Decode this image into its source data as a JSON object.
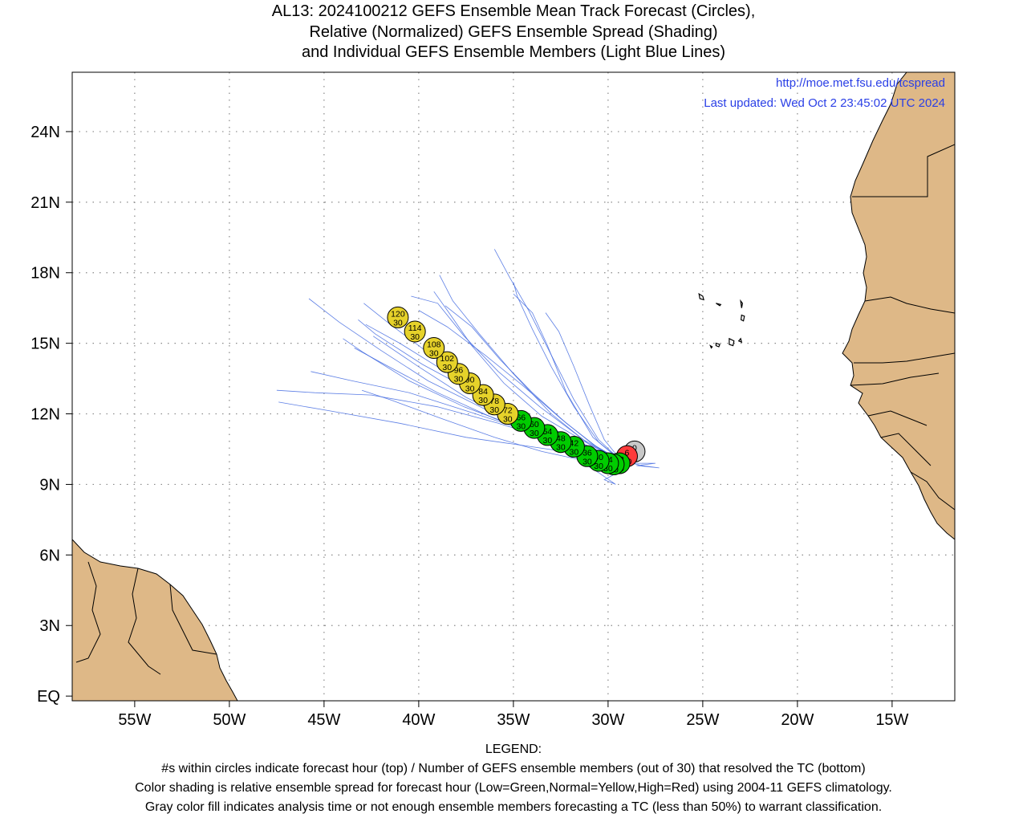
{
  "title": {
    "line1": "AL13: 2024100212 GEFS Ensemble Mean Track Forecast (Circles),",
    "line2": "Relative (Normalized) GEFS Ensemble Spread (Shading)",
    "line3": "and Individual GEFS Ensemble Members (Light Blue Lines)"
  },
  "source_url": "http://moe.met.fsu.edu/tcspread",
  "last_updated": "Last updated: Wed Oct 2 23:45:02 UTC 2024",
  "lat_labels": [
    "EQ",
    "3N",
    "6N",
    "9N",
    "12N",
    "15N",
    "18N",
    "21N",
    "24N"
  ],
  "lon_labels": [
    "55W",
    "50W",
    "45W",
    "40W",
    "35W",
    "30W",
    "25W",
    "20W",
    "15W"
  ],
  "colors": {
    "land": "#deb887",
    "member_line": "#4169e1",
    "low_spread": "#00cc00",
    "normal_spread": "#e6d22a",
    "high_spread": "#ff3b3b",
    "analysis_gray": "#c8c8c8",
    "link": "#2a3fe6"
  },
  "legend": {
    "heading": "LEGEND:",
    "line1": "#s within circles indicate forecast hour (top) / Number of GEFS ensemble members (out of 30) that resolved the TC (bottom)",
    "line2": "Color shading is relative ensemble spread for forecast hour (Low=Green,Normal=Yellow,High=Red) using 2004-11 GEFS climatology.",
    "line3": "Gray color fill indicates analysis time or not enough ensemble members forecasting a TC (less than 50%) to warrant classification."
  },
  "track": [
    {
      "hour": "0",
      "members": "0",
      "color": "gray",
      "lon": -28.6,
      "lat": 10.4
    },
    {
      "hour": "6",
      "members": "30",
      "color": "red",
      "lon": -29.0,
      "lat": 10.2
    },
    {
      "hour": "12",
      "members": "30",
      "color": "green",
      "lon": -29.4,
      "lat": 9.9
    },
    {
      "hour": "18",
      "members": "30",
      "color": "green",
      "lon": -29.7,
      "lat": 9.85
    },
    {
      "hour": "24",
      "members": "30",
      "color": "green",
      "lon": -30.0,
      "lat": 9.9
    },
    {
      "hour": "30",
      "members": "30",
      "color": "green",
      "lon": -30.5,
      "lat": 10.0
    },
    {
      "hour": "36",
      "members": "30",
      "color": "green",
      "lon": -31.1,
      "lat": 10.2
    },
    {
      "hour": "42",
      "members": "30",
      "color": "green",
      "lon": -31.8,
      "lat": 10.6
    },
    {
      "hour": "48",
      "members": "30",
      "color": "green",
      "lon": -32.5,
      "lat": 10.8
    },
    {
      "hour": "54",
      "members": "30",
      "color": "green",
      "lon": -33.2,
      "lat": 11.1
    },
    {
      "hour": "60",
      "members": "30",
      "color": "green",
      "lon": -33.9,
      "lat": 11.4
    },
    {
      "hour": "66",
      "members": "30",
      "color": "green",
      "lon": -34.6,
      "lat": 11.7
    },
    {
      "hour": "72",
      "members": "30",
      "color": "yellow",
      "lon": -35.3,
      "lat": 12.0
    },
    {
      "hour": "78",
      "members": "30",
      "color": "yellow",
      "lon": -36.0,
      "lat": 12.4
    },
    {
      "hour": "84",
      "members": "30",
      "color": "yellow",
      "lon": -36.6,
      "lat": 12.8
    },
    {
      "hour": "90",
      "members": "30",
      "color": "yellow",
      "lon": -37.3,
      "lat": 13.3
    },
    {
      "hour": "96",
      "members": "30",
      "color": "yellow",
      "lon": -37.9,
      "lat": 13.7
    },
    {
      "hour": "102",
      "members": "30",
      "color": "yellow",
      "lon": -38.5,
      "lat": 14.2
    },
    {
      "hour": "108",
      "members": "30",
      "color": "yellow",
      "lon": -39.2,
      "lat": 14.8
    },
    {
      "hour": "114",
      "members": "30",
      "color": "yellow",
      "lon": -40.2,
      "lat": 15.5
    },
    {
      "hour": "120",
      "members": "30",
      "color": "yellow",
      "lon": -41.1,
      "lat": 16.1
    }
  ],
  "members": [
    [
      [
        -29.3,
        10.0
      ],
      [
        -31.0,
        10.5
      ],
      [
        -33.5,
        11.3
      ],
      [
        -36.5,
        12.2
      ],
      [
        -39.5,
        13.4
      ],
      [
        -42.0,
        14.7
      ],
      [
        -44.2,
        15.9
      ],
      [
        -45.8,
        16.9
      ]
    ],
    [
      [
        -29.3,
        10.0
      ],
      [
        -31.5,
        10.8
      ],
      [
        -34.0,
        11.8
      ],
      [
        -36.8,
        13.1
      ],
      [
        -39.5,
        14.6
      ],
      [
        -41.5,
        15.8
      ],
      [
        -42.9,
        16.7
      ]
    ],
    [
      [
        -29.3,
        10.0
      ],
      [
        -31.0,
        10.7
      ],
      [
        -33.0,
        12.0
      ],
      [
        -35.0,
        13.7
      ],
      [
        -36.8,
        15.4
      ],
      [
        -38.2,
        16.8
      ],
      [
        -38.9,
        17.9
      ]
    ],
    [
      [
        -29.3,
        10.0
      ],
      [
        -30.5,
        10.9
      ],
      [
        -31.8,
        12.6
      ],
      [
        -33.0,
        14.5
      ],
      [
        -34.2,
        16.4
      ],
      [
        -35.2,
        17.8
      ],
      [
        -36.0,
        19.0
      ]
    ],
    [
      [
        -29.3,
        10.0
      ],
      [
        -30.8,
        11.0
      ],
      [
        -32.2,
        12.9
      ],
      [
        -33.2,
        14.9
      ],
      [
        -34.0,
        16.3
      ],
      [
        -35.0,
        17.1
      ]
    ],
    [
      [
        -29.3,
        10.0
      ],
      [
        -31.2,
        10.8
      ],
      [
        -33.5,
        11.9
      ],
      [
        -35.5,
        13.3
      ],
      [
        -37.2,
        14.9
      ],
      [
        -38.4,
        16.3
      ],
      [
        -39.2,
        17.2
      ]
    ],
    [
      [
        -29.3,
        10.0
      ],
      [
        -30.9,
        10.4
      ],
      [
        -33.0,
        10.9
      ],
      [
        -35.8,
        11.6
      ],
      [
        -39.0,
        12.3
      ],
      [
        -42.5,
        12.8
      ],
      [
        -45.5,
        12.9
      ],
      [
        -47.5,
        13.0
      ]
    ],
    [
      [
        -29.3,
        10.0
      ],
      [
        -31.5,
        10.3
      ],
      [
        -34.0,
        10.6
      ],
      [
        -37.5,
        11.0
      ],
      [
        -41.0,
        11.6
      ],
      [
        -44.5,
        12.1
      ],
      [
        -47.4,
        12.5
      ]
    ],
    [
      [
        -29.3,
        10.0
      ],
      [
        -31.2,
        10.5
      ],
      [
        -34.0,
        11.2
      ],
      [
        -37.0,
        12.0
      ],
      [
        -40.5,
        12.9
      ],
      [
        -43.5,
        13.4
      ],
      [
        -45.7,
        13.8
      ]
    ],
    [
      [
        -29.3,
        10.0
      ],
      [
        -31.0,
        10.6
      ],
      [
        -33.8,
        11.6
      ],
      [
        -36.8,
        12.8
      ],
      [
        -39.8,
        14.1
      ],
      [
        -42.3,
        15.4
      ],
      [
        -43.2,
        16.0
      ]
    ],
    [
      [
        -29.3,
        10.0
      ],
      [
        -31.3,
        10.9
      ],
      [
        -33.6,
        12.3
      ],
      [
        -35.8,
        13.8
      ],
      [
        -37.6,
        15.3
      ],
      [
        -39.0,
        16.7
      ],
      [
        -40.4,
        17.0
      ]
    ],
    [
      [
        -29.3,
        10.0
      ],
      [
        -31.0,
        10.5
      ],
      [
        -33.4,
        11.5
      ],
      [
        -36.0,
        12.6
      ],
      [
        -38.6,
        13.8
      ],
      [
        -41.0,
        15.0
      ],
      [
        -42.8,
        15.8
      ]
    ],
    [
      [
        -29.5,
        9.7
      ],
      [
        -31.2,
        10.0
      ],
      [
        -33.5,
        10.4
      ],
      [
        -36.0,
        11.0
      ],
      [
        -38.8,
        11.8
      ],
      [
        -41.5,
        12.6
      ],
      [
        -43.0,
        13.0
      ]
    ],
    [
      [
        -29.0,
        9.9
      ],
      [
        -30.5,
        10.3
      ],
      [
        -32.5,
        10.9
      ],
      [
        -35.0,
        11.7
      ],
      [
        -37.5,
        12.7
      ],
      [
        -40.0,
        14.0
      ],
      [
        -42.4,
        15.3
      ]
    ],
    [
      [
        -29.3,
        10.0
      ],
      [
        -30.5,
        10.8
      ],
      [
        -31.8,
        12.3
      ],
      [
        -33.0,
        14.0
      ],
      [
        -34.0,
        15.6
      ],
      [
        -34.8,
        17.0
      ],
      [
        -35.0,
        17.6
      ]
    ],
    [
      [
        -29.3,
        10.0
      ],
      [
        -30.8,
        10.7
      ],
      [
        -32.5,
        11.8
      ],
      [
        -34.5,
        13.2
      ],
      [
        -36.5,
        14.5
      ],
      [
        -38.5,
        15.7
      ],
      [
        -40.0,
        16.4
      ]
    ],
    [
      [
        -29.3,
        10.0
      ],
      [
        -30.2,
        10.9
      ],
      [
        -31.0,
        12.4
      ],
      [
        -31.8,
        14.0
      ],
      [
        -32.6,
        15.5
      ],
      [
        -33.3,
        16.3
      ]
    ],
    [
      [
        -29.3,
        10.0
      ],
      [
        -31.0,
        10.4
      ],
      [
        -33.2,
        11.0
      ],
      [
        -36.0,
        11.8
      ],
      [
        -39.0,
        12.9
      ],
      [
        -41.8,
        14.1
      ],
      [
        -43.4,
        14.8
      ]
    ],
    [
      [
        -29.5,
        9.5
      ],
      [
        -30.2,
        9.2
      ],
      [
        -29.6,
        9.0
      ],
      [
        -30.5,
        9.5
      ],
      [
        -31.5,
        10.0
      ]
    ],
    [
      [
        -28.9,
        9.9
      ],
      [
        -27.5,
        9.9
      ],
      [
        -28.5,
        9.8
      ],
      [
        -27.3,
        9.7
      ],
      [
        -28.2,
        9.8
      ],
      [
        -29.3,
        10.0
      ]
    ],
    [
      [
        -29.3,
        10.0
      ],
      [
        -30.6,
        10.6
      ],
      [
        -32.2,
        11.6
      ],
      [
        -34.0,
        12.9
      ],
      [
        -35.7,
        14.3
      ],
      [
        -37.2,
        15.7
      ],
      [
        -38.6,
        16.6
      ]
    ],
    [
      [
        -29.3,
        10.0
      ],
      [
        -31.6,
        10.6
      ],
      [
        -34.6,
        11.4
      ],
      [
        -37.6,
        12.3
      ],
      [
        -40.5,
        13.4
      ],
      [
        -42.9,
        14.6
      ],
      [
        -44.0,
        15.2
      ]
    ]
  ],
  "islands": [
    [
      [
        -25.2,
        17.1
      ],
      [
        -25.0,
        17.0
      ],
      [
        -24.95,
        16.85
      ],
      [
        -25.15,
        16.9
      ]
    ],
    [
      [
        -24.3,
        16.7
      ],
      [
        -24.05,
        16.65
      ],
      [
        -24.1,
        16.6
      ]
    ],
    [
      [
        -23.0,
        16.8
      ],
      [
        -22.9,
        16.7
      ],
      [
        -22.95,
        16.5
      ]
    ],
    [
      [
        -22.95,
        16.2
      ],
      [
        -22.8,
        16.15
      ],
      [
        -22.85,
        15.95
      ],
      [
        -22.98,
        16.0
      ]
    ],
    [
      [
        -23.6,
        15.2
      ],
      [
        -23.35,
        15.1
      ],
      [
        -23.4,
        14.9
      ],
      [
        -23.6,
        14.95
      ]
    ],
    [
      [
        -23.0,
        15.2
      ],
      [
        -22.95,
        15.05
      ],
      [
        -23.1,
        15.1
      ]
    ],
    [
      [
        -24.3,
        15.0
      ],
      [
        -24.1,
        14.95
      ],
      [
        -24.15,
        14.85
      ],
      [
        -24.3,
        14.9
      ]
    ],
    [
      [
        -24.6,
        14.9
      ],
      [
        -24.5,
        14.85
      ],
      [
        -24.55,
        14.8
      ]
    ]
  ]
}
